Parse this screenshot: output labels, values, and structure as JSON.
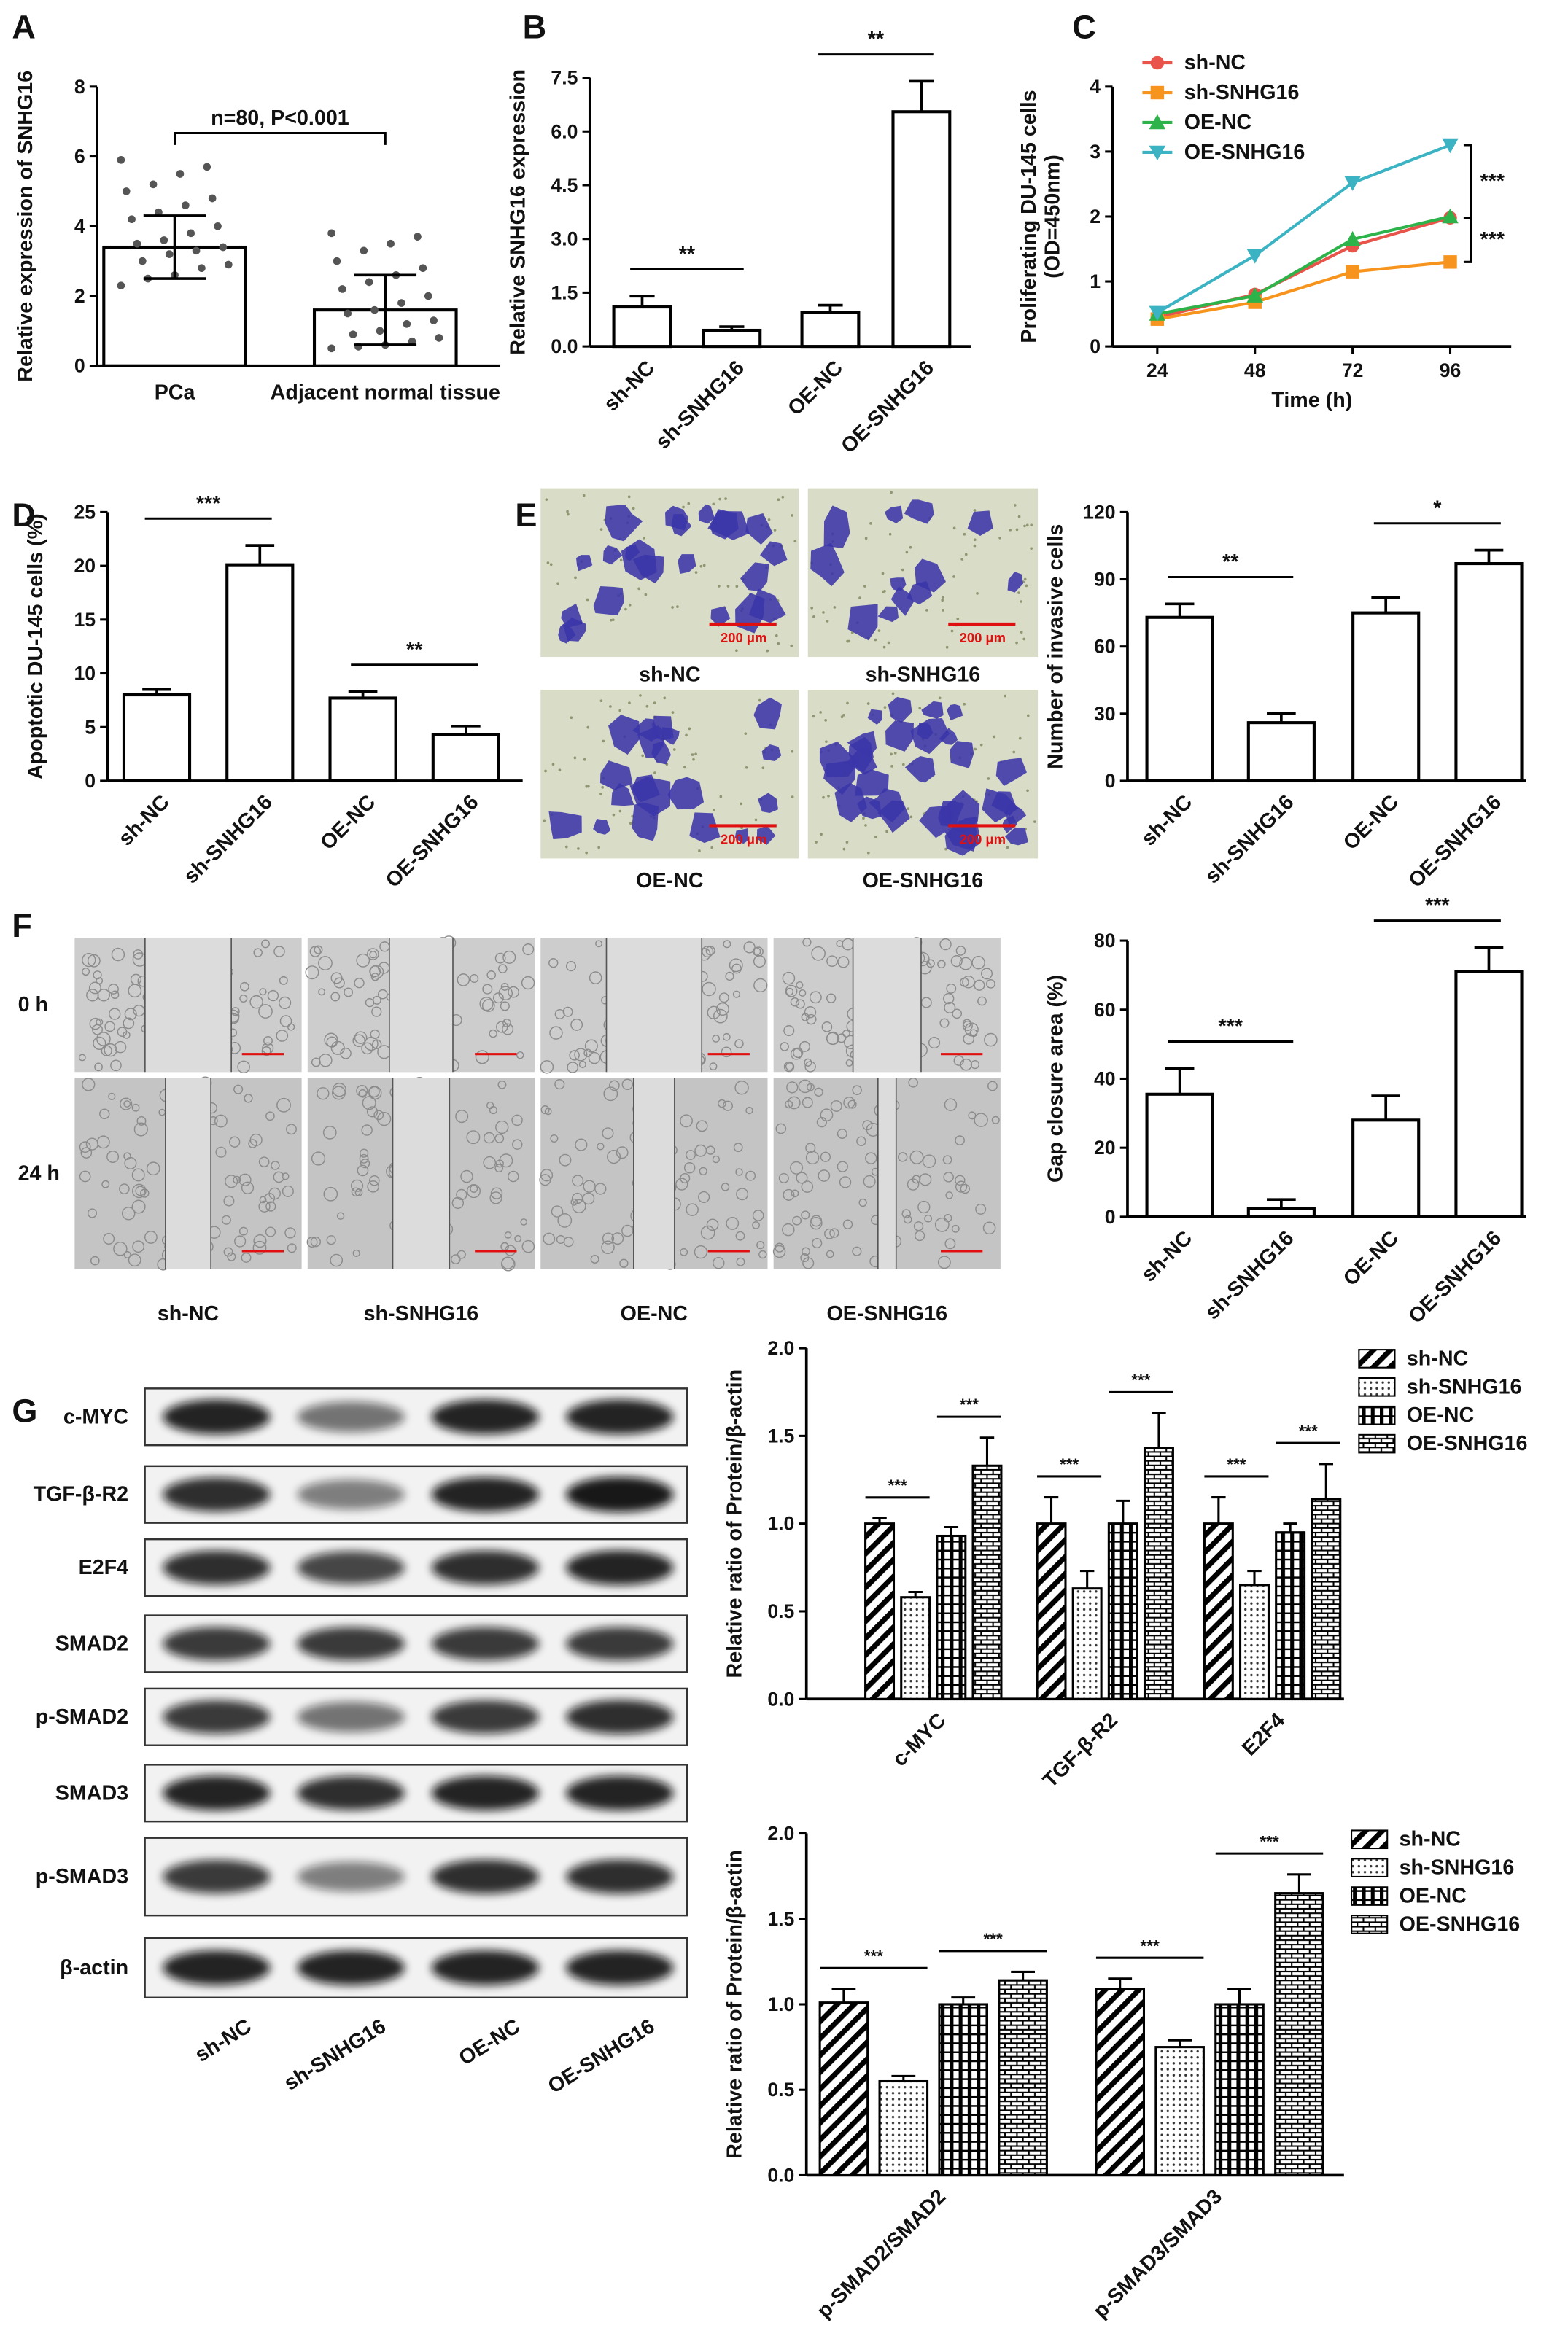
{
  "chart_data": [
    {
      "type": "bar",
      "panel": "A",
      "ylabel": "Relative expression of SNHG16",
      "categories": [
        "PCa",
        "Adjacent normal tissue"
      ],
      "values": [
        3.4,
        1.6
      ],
      "errors": [
        0.9,
        1.0
      ],
      "error_style": "both",
      "points": [
        [
          5.9,
          5.7,
          5.5,
          5.2,
          5.0,
          4.8,
          4.6,
          4.4,
          4.2,
          4.0,
          3.8,
          3.6,
          3.5,
          3.4,
          3.3,
          3.2,
          3.0,
          2.9,
          2.8,
          2.6,
          2.5,
          2.3
        ],
        [
          3.8,
          3.7,
          3.5,
          3.3,
          3.0,
          2.8,
          2.6,
          2.4,
          2.2,
          2.0,
          1.8,
          1.6,
          1.5,
          1.3,
          1.2,
          1.0,
          0.9,
          0.8,
          0.7,
          0.6,
          0.55,
          0.5
        ]
      ],
      "ylim": [
        0,
        8
      ],
      "yticks": [
        0,
        2,
        4,
        6,
        8
      ],
      "annotations": [
        "n=80, P<0.001"
      ],
      "bracket": true,
      "color": "#ffffff"
    },
    {
      "type": "bar",
      "panel": "B",
      "ylabel": "Relative  SNHG16 expression",
      "categories": [
        "sh-NC",
        "sh-SNHG16",
        "OE-NC",
        "OE-SNHG16"
      ],
      "values": [
        1.1,
        0.45,
        0.95,
        6.55
      ],
      "errors": [
        0.3,
        0.1,
        0.2,
        0.85
      ],
      "ylim": [
        0,
        7.5
      ],
      "yticks": [
        {
          "value": 0,
          "label": "0.0"
        },
        1.5,
        {
          "value": 3,
          "label": "3.0"
        },
        4.5,
        {
          "value": 6,
          "label": "6.0"
        },
        7.5
      ],
      "annotations": [
        "**",
        "**"
      ],
      "color": "#ffffff"
    },
    {
      "type": "line",
      "panel": "C",
      "ylabel": [
        "Proliferating DU-145 cells",
        "(OD=450nm)"
      ],
      "xlabel": "Time (h)",
      "x": [
        24,
        48,
        72,
        96
      ],
      "xlim": [
        13,
        111
      ],
      "xticks": [
        24,
        48,
        72,
        96
      ],
      "ylim": [
        0,
        4
      ],
      "yticks": [
        0,
        1,
        2,
        3,
        4
      ],
      "series": [
        {
          "name": "sh-NC",
          "color": "#e8534a",
          "marker": "circle",
          "values": [
            0.45,
            0.8,
            1.55,
            1.98
          ]
        },
        {
          "name": "sh-SNHG16",
          "color": "#f7941d",
          "marker": "square",
          "values": [
            0.42,
            0.68,
            1.15,
            1.3
          ]
        },
        {
          "name": "OE-NC",
          "color": "#2db34a",
          "marker": "triangle-up",
          "values": [
            0.5,
            0.78,
            1.65,
            2.0
          ]
        },
        {
          "name": "OE-SNHG16",
          "color": "#3bb3c3",
          "marker": "triangle-down",
          "values": [
            0.52,
            1.4,
            2.52,
            3.1
          ]
        }
      ],
      "annotations": [
        "***",
        "***"
      ]
    },
    {
      "type": "bar",
      "panel": "D",
      "ylabel": "Apoptotic DU-145 cells (%)",
      "categories": [
        "sh-NC",
        "sh-SNHG16",
        "OE-NC",
        "OE-SNHG16"
      ],
      "values": [
        8,
        20.1,
        7.7,
        4.3
      ],
      "errors": [
        0.5,
        1.8,
        0.6,
        0.8
      ],
      "ylim": [
        0,
        25
      ],
      "yticks": [
        0,
        5,
        10,
        15,
        20,
        25
      ],
      "annotations": [
        "***",
        "**"
      ],
      "color": "#ffffff"
    },
    {
      "type": "bar",
      "panel": "E",
      "ylabel": "Number of invasive cells",
      "categories": [
        "sh-NC",
        "sh-SNHG16",
        "OE-NC",
        "OE-SNHG16"
      ],
      "values": [
        73,
        26,
        75,
        97
      ],
      "errors": [
        6,
        4,
        7,
        6
      ],
      "ylim": [
        0,
        120
      ],
      "yticks": [
        0,
        30,
        60,
        90,
        120
      ],
      "annotations": [
        "**",
        "*"
      ],
      "color": "#ffffff"
    },
    {
      "type": "bar",
      "panel": "F",
      "ylabel": "Gap closure area (%)",
      "categories": [
        "sh-NC",
        "sh-SNHG16",
        "OE-NC",
        "OE-SNHG16"
      ],
      "values": [
        35.5,
        2.5,
        28,
        71
      ],
      "errors": [
        7.5,
        2.5,
        7,
        7
      ],
      "ylim": [
        0,
        80
      ],
      "yticks": [
        0,
        20,
        40,
        60,
        80
      ],
      "annotations": [
        "***",
        "***"
      ],
      "color": "#ffffff"
    },
    {
      "type": "grouped_bar",
      "panel": "G",
      "ylabel": "Relative ratio of Protein/β-actin",
      "categories": [
        "c-MYC",
        "TGF-β-R2",
        "E2F4"
      ],
      "ylim": [
        0,
        2
      ],
      "yticks": [
        {
          "value": 0,
          "label": "0.0"
        },
        0.5,
        {
          "value": 1,
          "label": "1.0"
        },
        1.5,
        {
          "value": 2,
          "label": "2.0"
        }
      ],
      "series": [
        {
          "name": "sh-NC",
          "pattern": "diagonal",
          "values": [
            1.0,
            1.0,
            1.0
          ],
          "errors": [
            0.03,
            0.15,
            0.15
          ]
        },
        {
          "name": "sh-SNHG16",
          "pattern": "dots",
          "values": [
            0.58,
            0.63,
            0.65
          ],
          "errors": [
            0.03,
            0.1,
            0.08
          ]
        },
        {
          "name": "OE-NC",
          "pattern": "grid",
          "values": [
            0.93,
            1.0,
            0.95
          ],
          "errors": [
            0.05,
            0.13,
            0.05
          ]
        },
        {
          "name": "OE-SNHG16",
          "pattern": "brick",
          "values": [
            1.33,
            1.43,
            1.14
          ],
          "errors": [
            0.16,
            0.2,
            0.2
          ]
        }
      ],
      "annotations": [
        "***",
        "***",
        "***",
        "***",
        "***",
        "***"
      ]
    },
    {
      "type": "grouped_bar",
      "ylabel": "Relative ratio of Protein/β-actin",
      "categories": [
        "p-SMAD2/SMAD2",
        "p-SMAD3/SMAD3"
      ],
      "ylim": [
        0,
        2
      ],
      "yticks": [
        {
          "value": 0,
          "label": "0.0"
        },
        0.5,
        {
          "value": 1,
          "label": "1.0"
        },
        1.5,
        {
          "value": 2,
          "label": "2.0"
        }
      ],
      "series": [
        {
          "name": "sh-NC",
          "pattern": "diagonal",
          "values": [
            1.01,
            1.09
          ],
          "errors": [
            0.08,
            0.06
          ]
        },
        {
          "name": "sh-SNHG16",
          "pattern": "dots",
          "values": [
            0.55,
            0.75
          ],
          "errors": [
            0.03,
            0.04
          ]
        },
        {
          "name": "OE-NC",
          "pattern": "grid",
          "values": [
            1.0,
            1.0
          ],
          "errors": [
            0.04,
            0.09
          ]
        },
        {
          "name": "OE-SNHG16",
          "pattern": "brick",
          "values": [
            1.14,
            1.65
          ],
          "errors": [
            0.05,
            0.11
          ]
        }
      ],
      "annotations": [
        "***",
        "***",
        "***",
        "***"
      ]
    }
  ],
  "invasion_images": {
    "labels": [
      "sh-NC",
      "sh-SNHG16",
      "OE-NC",
      "OE-SNHG16"
    ],
    "scale": "200 μm"
  },
  "migration_images": {
    "rows": [
      "0 h",
      "24 h"
    ],
    "labels": [
      "sh-NC",
      "sh-SNHG16",
      "OE-NC",
      "OE-SNHG16"
    ]
  },
  "western_blot": {
    "proteins": [
      "c-MYC",
      "TGF-β-R2",
      "E2F4",
      "SMAD2",
      "p-SMAD2",
      "SMAD3",
      "p-SMAD3",
      "β-actin"
    ],
    "lanes": [
      "sh-NC",
      "sh-SNHG16",
      "OE-NC",
      "OE-SNHG16"
    ]
  }
}
